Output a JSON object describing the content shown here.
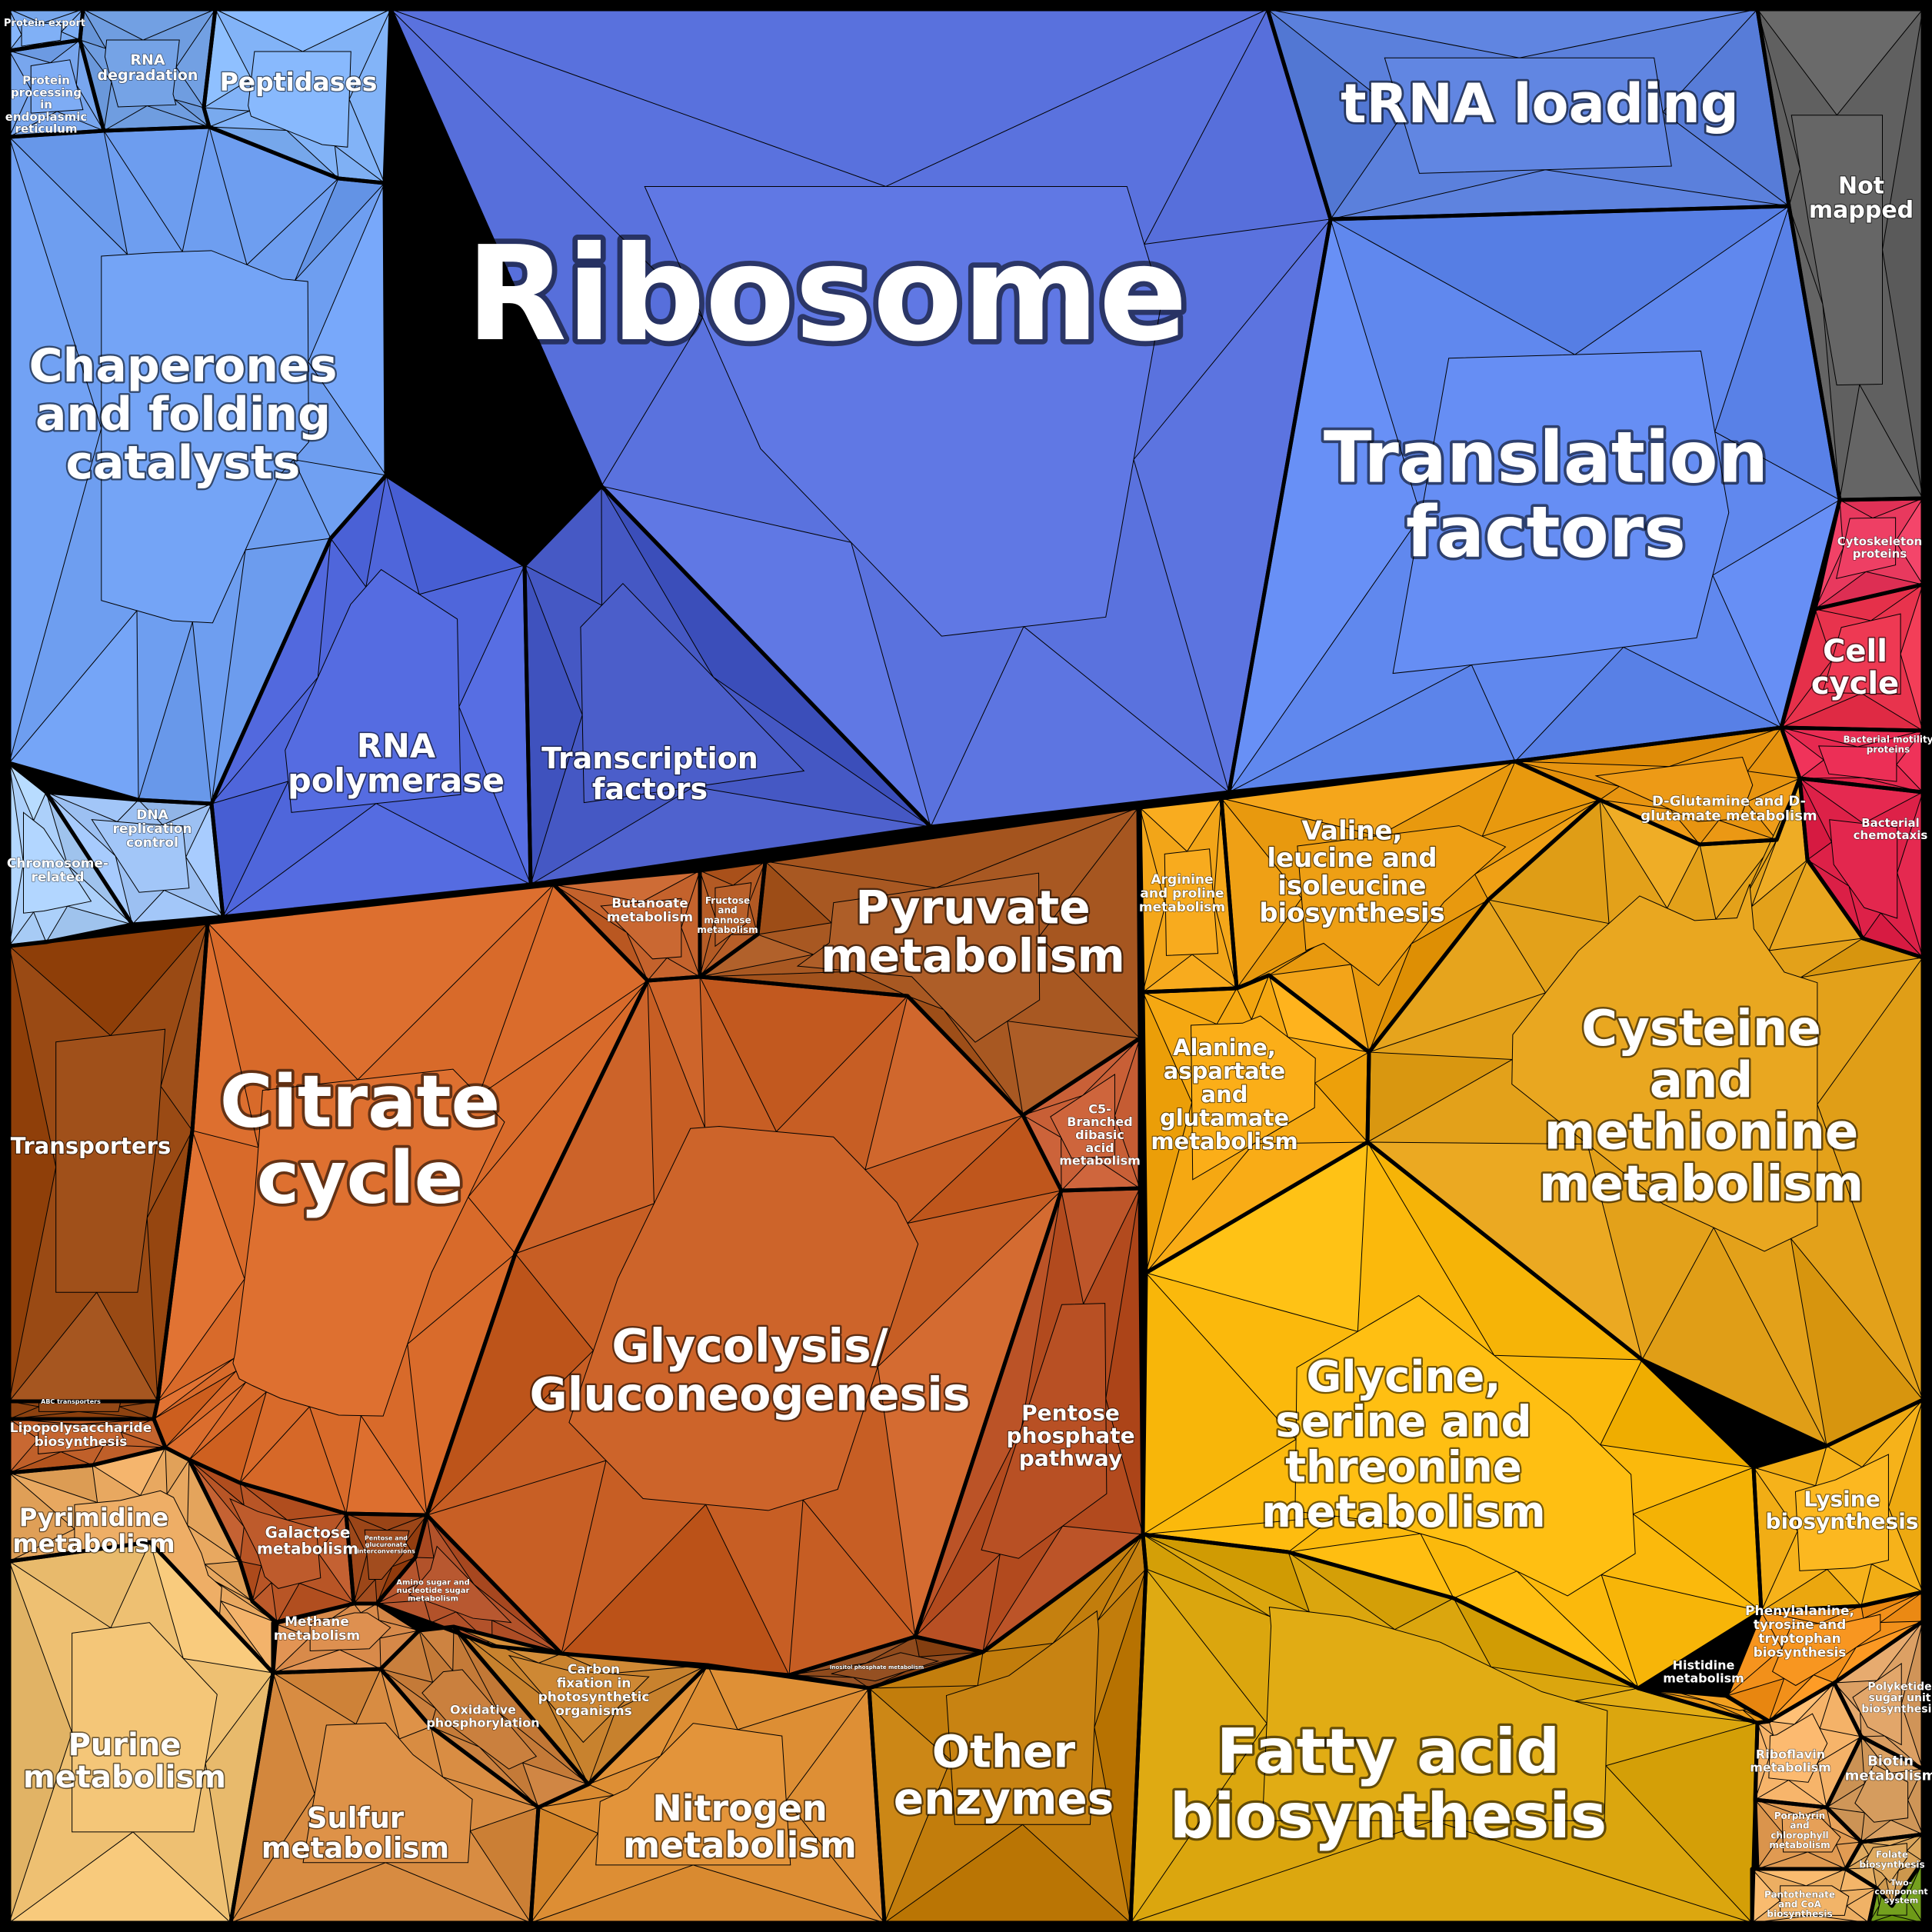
{
  "diagram": {
    "type": "voronoi-treemap",
    "groups": [
      {
        "id": "protein-export",
        "color": "#7aaaf0",
        "lines": [
          "Protein export"
        ]
      },
      {
        "id": "rna-degradation",
        "color": "#6f9de0",
        "lines": [
          "RNA",
          "degradation"
        ]
      },
      {
        "id": "peptidases",
        "color": "#82b3f7",
        "lines": [
          "Peptidases"
        ]
      },
      {
        "id": "protein-processing",
        "color": "#78a6ee",
        "lines": [
          "Protein",
          "processing",
          "in",
          "endoplasmic",
          "reticulum"
        ]
      },
      {
        "id": "chaperones",
        "color": "#6e9ef0",
        "lines": [
          "Chaperones",
          "and folding",
          "catalysts"
        ]
      },
      {
        "id": "ribosome",
        "color": "#5a72de",
        "lines": [
          "Ribosome"
        ]
      },
      {
        "id": "trna-loading",
        "color": "#5b80dc",
        "lines": [
          "tRNA loading"
        ]
      },
      {
        "id": "not-mapped",
        "color": "#606060",
        "lines": [
          "Not",
          "mapped"
        ]
      },
      {
        "id": "translation-factors",
        "color": "#6088ee",
        "lines": [
          "Translation",
          "factors"
        ]
      },
      {
        "id": "rna-polymerase",
        "color": "#4f66db",
        "lines": [
          "RNA",
          "polymerase"
        ]
      },
      {
        "id": "transcription-factors",
        "color": "#4558c4",
        "lines": [
          "Transcription",
          "factors"
        ]
      },
      {
        "id": "dna-replication",
        "color": "#9cc0f2",
        "lines": [
          "DNA",
          "replication",
          "control"
        ]
      },
      {
        "id": "chromosome-related",
        "color": "#acd0fa",
        "lines": [
          "Chromosome-",
          "related"
        ]
      },
      {
        "id": "cytoskeleton",
        "color": "#e8395e",
        "lines": [
          "Cytoskeleton",
          "proteins"
        ]
      },
      {
        "id": "cell-cycle",
        "color": "#e8334d",
        "lines": [
          "Cell",
          "cycle"
        ]
      },
      {
        "id": "bacterial-motility",
        "color": "#e62950",
        "lines": [
          "Bacterial motility",
          "proteins"
        ]
      },
      {
        "id": "bacterial-chemotaxis",
        "color": "#dd2148",
        "lines": [
          "Bacterial",
          "chemotaxis"
        ]
      },
      {
        "id": "transporters",
        "color": "#9a4a14",
        "lines": [
          "Transporters"
        ]
      },
      {
        "id": "abc-transporters",
        "color": "#8d4210",
        "lines": [
          "ABC transporters"
        ]
      },
      {
        "id": "lipopolysaccharide",
        "color": "#c0602a",
        "lines": [
          "Lipopolysaccharide",
          "biosynthesis"
        ]
      },
      {
        "id": "citrate-cycle",
        "color": "#d86a2a",
        "lines": [
          "Citrate",
          "cycle"
        ]
      },
      {
        "id": "butanoate",
        "color": "#c4622c",
        "lines": [
          "Butanoate",
          "metabolism"
        ]
      },
      {
        "id": "fructose-mannose",
        "color": "#b35a24",
        "lines": [
          "Fructose",
          "and",
          "mannose",
          "metabolism"
        ]
      },
      {
        "id": "pyruvate",
        "color": "#a85822",
        "lines": [
          "Pyruvate",
          "metabolism"
        ]
      },
      {
        "id": "c5-branched",
        "color": "#c85f36",
        "lines": [
          "C5-",
          "Branched",
          "dibasic",
          "acid",
          "metabolism"
        ]
      },
      {
        "id": "glycolysis",
        "color": "#c75e24",
        "lines": [
          "Glycolysis/",
          "Gluconeogenesis"
        ]
      },
      {
        "id": "pentose-phosphate",
        "color": "#b24a1e",
        "lines": [
          "Pentose",
          "phosphate",
          "pathway"
        ]
      },
      {
        "id": "galactose",
        "color": "#b85526",
        "lines": [
          "Galactose",
          "metabolism"
        ]
      },
      {
        "id": "pentose-glucuronate",
        "color": "#9c4618",
        "lines": [
          "Pentose and",
          "glucuronate",
          "interconversions"
        ]
      },
      {
        "id": "amino-sugar",
        "color": "#b2522a",
        "lines": [
          "Amino sugar and",
          "nucleotide sugar",
          "metabolism"
        ]
      },
      {
        "id": "inositol-phosphate",
        "color": "#8f4a1c",
        "lines": [
          "Inositol phosphate metabolism"
        ]
      },
      {
        "id": "pyrimidine",
        "color": "#e8a860",
        "lines": [
          "Pyrimidine",
          "metabolism"
        ]
      },
      {
        "id": "purine",
        "color": "#eec072",
        "lines": [
          "Purine",
          "metabolism"
        ]
      },
      {
        "id": "methane",
        "color": "#d88a4a",
        "lines": [
          "Methane",
          "metabolism"
        ]
      },
      {
        "id": "oxidative-phosphorylation",
        "color": "#c47a38",
        "lines": [
          "Oxidative",
          "phosphorylation"
        ]
      },
      {
        "id": "carbon-fixation",
        "color": "#c8822e",
        "lines": [
          "Carbon",
          "fixation in",
          "photosynthetic",
          "organisms"
        ]
      },
      {
        "id": "sulfur",
        "color": "#d88c42",
        "lines": [
          "Sulfur",
          "metabolism"
        ]
      },
      {
        "id": "nitrogen",
        "color": "#dd8e34",
        "lines": [
          "Nitrogen",
          "metabolism"
        ]
      },
      {
        "id": "other-enzymes",
        "color": "#c27d0c",
        "lines": [
          "Other",
          "enzymes"
        ]
      },
      {
        "id": "arginine-proline",
        "color": "#f2a518",
        "lines": [
          "Arginine",
          "and proline",
          "metabolism"
        ]
      },
      {
        "id": "valine-leucine",
        "color": "#e8990e",
        "lines": [
          "Valine,",
          "leucine and",
          "isoleucine",
          "biosynthesis"
        ]
      },
      {
        "id": "d-glutamine",
        "color": "#e79410",
        "lines": [
          "D-Glutamine and D-",
          "glutamate metabolism"
        ]
      },
      {
        "id": "alanine-aspartate",
        "color": "#f5a812",
        "lines": [
          "Alanine,",
          "aspartate",
          "and",
          "glutamate",
          "metabolism"
        ]
      },
      {
        "id": "cysteine-methionine",
        "color": "#e3a11a",
        "lines": [
          "Cysteine",
          "and",
          "methionine",
          "metabolism"
        ]
      },
      {
        "id": "glycine-serine",
        "color": "#fbb90c",
        "lines": [
          "Glycine,",
          "serine and",
          "threonine",
          "metabolism"
        ]
      },
      {
        "id": "fatty-acid",
        "color": "#dba60e",
        "lines": [
          "Fatty acid",
          "biosynthesis"
        ]
      },
      {
        "id": "lysine",
        "color": "#f6b21a",
        "lines": [
          "Lysine",
          "biosynthesis"
        ]
      },
      {
        "id": "phenylalanine",
        "color": "#f2901a",
        "lines": [
          "Phenylalanine,",
          "tyrosine and",
          "tryptophan",
          "biosynthesis"
        ]
      },
      {
        "id": "histidine",
        "color": "#ec9a1a",
        "lines": [
          "Histidine",
          "metabolism"
        ]
      },
      {
        "id": "polyketide",
        "color": "#dca064",
        "lines": [
          "Polyketide",
          "sugar unit",
          "biosynthesis"
        ]
      },
      {
        "id": "riboflavin",
        "color": "#f6b46a",
        "lines": [
          "Riboflavin",
          "metabolism"
        ]
      },
      {
        "id": "biotin",
        "color": "#cf9658",
        "lines": [
          "Biotin",
          "metabolism"
        ]
      },
      {
        "id": "porphyrin",
        "color": "#e09a52",
        "lines": [
          "Porphyrin",
          "and",
          "chlorophyll",
          "metabolism"
        ]
      },
      {
        "id": "folate",
        "color": "#d9a45a",
        "lines": [
          "Folate",
          "biosynthesis"
        ]
      },
      {
        "id": "pantothenate",
        "color": "#ecae62",
        "lines": [
          "Pantothenate",
          "and CoA",
          "biosynthesis"
        ]
      },
      {
        "id": "two-component",
        "color": "#6e9a18",
        "lines": [
          "Two-",
          "component",
          "system"
        ]
      }
    ]
  }
}
